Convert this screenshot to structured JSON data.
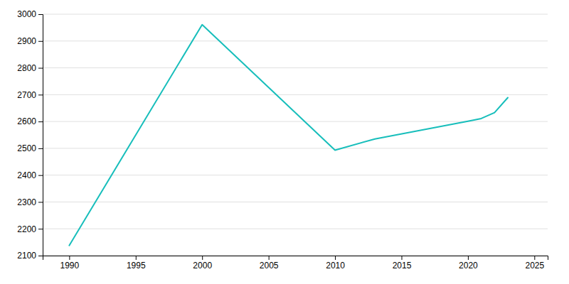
{
  "chart_data": {
    "type": "line",
    "x": [
      1990,
      2000,
      2010,
      2013,
      2020,
      2021,
      2022,
      2023
    ],
    "values": [
      2138,
      2961,
      2493,
      2535,
      2601,
      2611,
      2633,
      2689
    ],
    "color": "#17bebb",
    "xlim": [
      1988,
      2026
    ],
    "ylim": [
      2100,
      3000
    ],
    "xticks": [
      1990,
      1995,
      2000,
      2005,
      2010,
      2015,
      2020,
      2025
    ],
    "yticks": [
      2100,
      2200,
      2300,
      2400,
      2500,
      2600,
      2700,
      2800,
      2900,
      3000
    ],
    "grid": true
  }
}
